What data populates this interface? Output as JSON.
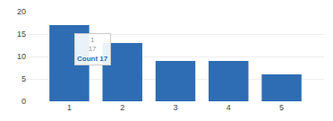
{
  "chart_data": {
    "type": "bar",
    "x": [
      1,
      2,
      3,
      4,
      5
    ],
    "values": [
      17,
      13,
      9,
      9,
      6
    ],
    "color": "#2e6db4",
    "xlim": [
      0.2,
      5.8
    ],
    "xticks": [
      1,
      2,
      3,
      4,
      5
    ],
    "ylim": [
      0,
      20
    ],
    "yticks": [
      0,
      5,
      10,
      15,
      20
    ],
    "grid": true,
    "annotations": [
      "1",
      "17",
      "Count 17"
    ]
  }
}
